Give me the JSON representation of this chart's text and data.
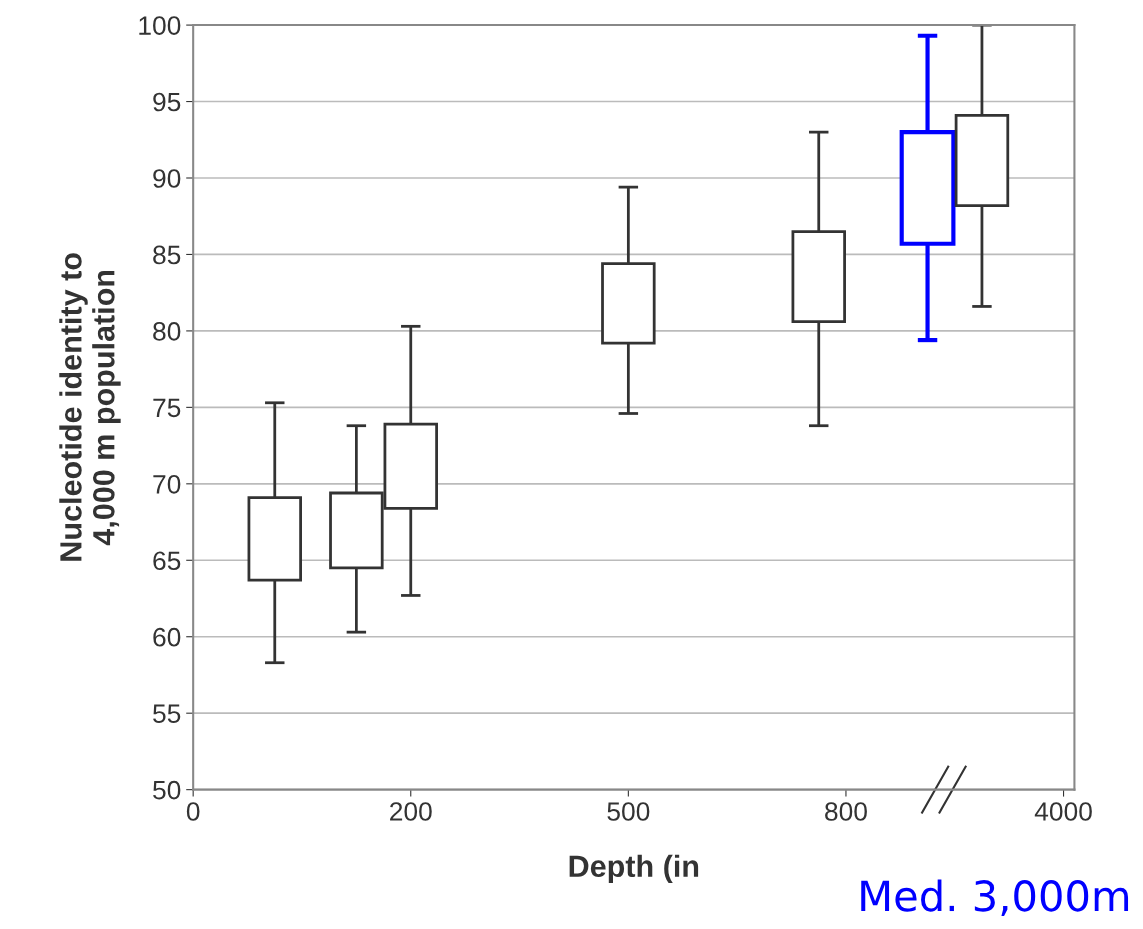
{
  "chart_data": {
    "type": "bar",
    "xlabel": "Depth (in",
    "ylabel": "Nucleotide identity to\n4,000 m population",
    "categories": [
      "0",
      null,
      null,
      null,
      null,
      null,
      null,
      null,
      "200",
      null,
      null,
      null,
      null,
      null,
      null,
      null,
      "500",
      null,
      null,
      null,
      null,
      null,
      null,
      null,
      "800",
      null,
      null,
      null,
      null,
      null,
      null,
      null,
      "4000"
    ],
    "values": [
      null,
      null,
      null,
      5.4,
      null,
      null,
      4.9,
      null,
      5.5,
      null,
      null,
      null,
      null,
      null,
      null,
      null,
      5.2,
      null,
      null,
      null,
      null,
      null,
      null,
      5.9,
      null,
      null,
      null,
      7.3,
      null,
      5.9,
      null,
      null,
      null
    ],
    "base": [
      null,
      null,
      null,
      63.7,
      null,
      null,
      64.5,
      null,
      68.4,
      null,
      null,
      null,
      null,
      null,
      null,
      null,
      79.2,
      null,
      null,
      null,
      null,
      null,
      null,
      80.6,
      null,
      null,
      null,
      85.7,
      null,
      88.2,
      null,
      null,
      null
    ],
    "errors": [
      null,
      null,
      null,
      [
        58.3,
        75.3
      ],
      null,
      null,
      [
        60.3,
        73.8
      ],
      null,
      [
        62.7,
        80.3
      ],
      null,
      null,
      null,
      null,
      null,
      null,
      null,
      [
        74.6,
        89.4
      ],
      null,
      null,
      null,
      null,
      null,
      null,
      [
        73.8,
        93.0
      ],
      null,
      null,
      null,
      [
        79.4,
        99.3
      ],
      null,
      [
        81.6,
        100
      ],
      null,
      null,
      null
    ],
    "colors": [
      null,
      null,
      null,
      "#333333",
      null,
      null,
      "#333333",
      null,
      "#333333",
      null,
      null,
      null,
      null,
      null,
      null,
      null,
      "#333333",
      null,
      null,
      null,
      null,
      null,
      null,
      "#333333",
      null,
      null,
      null,
      "#0000ff",
      null,
      "#333333",
      null,
      null,
      null
    ],
    "ylim": [
      50,
      100
    ],
    "yticks": [
      50,
      55,
      60,
      65,
      70,
      75,
      80,
      85,
      90,
      95,
      100
    ],
    "grid": "y",
    "annotations": [
      "Med. 3,000m"
    ]
  }
}
